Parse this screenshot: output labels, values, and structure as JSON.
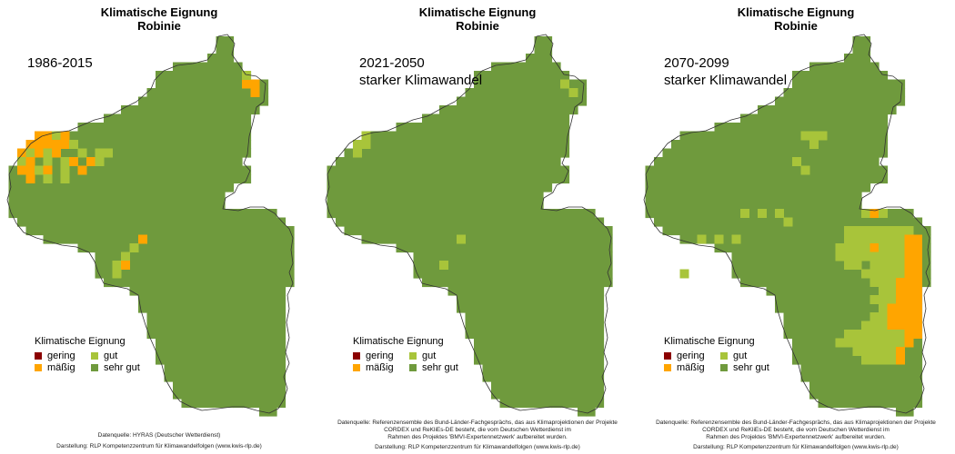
{
  "colors": {
    "gering": "#8b0000",
    "maessig": "#ffa500",
    "gut": "#a8c43a",
    "sehr_gut": "#6f9a3d",
    "border": "#333333"
  },
  "legend": {
    "title": "Klimatische Eignung",
    "items": [
      {
        "label": "gering",
        "color": "#8b0000"
      },
      {
        "label": "gut",
        "color": "#a8c43a"
      },
      {
        "label": "mäßig",
        "color": "#ffa500"
      },
      {
        "label": "sehr gut",
        "color": "#6f9a3d"
      }
    ]
  },
  "panels": [
    {
      "title_line1": "Klimatische Eignung",
      "title_line2": "Robinie",
      "period_line1": "1986-2015",
      "period_line2": "",
      "footer": [
        "Datenquelle: HYRAS (Deutscher Wetterdienst)",
        "Darstellung: RLP Kompetenzzentrum für Klimawandelfolgen (www.kwis-rlp.de)"
      ]
    },
    {
      "title_line1": "Klimatische Eignung",
      "title_line2": "Robinie",
      "period_line1": "2021-2050",
      "period_line2": "starker Klimawandel",
      "footer": [
        "Datenquelle: Referenzensemble des Bund-Länder-Fachgesprächs, das aus Klimaprojektionen der Projekte",
        "CORDEX und ReKliEs-DE besteht, die vom Deutschen Wetterdienst im",
        "Rahmen des Projektes 'BMVI-Expertennetzwerk' aufbereitet wurden.",
        "Darstellung: RLP Kompetenzzentrum für Klimawandelfolgen (www.kwis-rlp.de)"
      ]
    },
    {
      "title_line1": "Klimatische Eignung",
      "title_line2": "Robinie",
      "period_line1": "2070-2099",
      "period_line2": "starker Klimawandel",
      "footer": [
        "Datenquelle: Referenzensemble des Bund-Länder-Fachgesprächs, das aus Klimaprojektionen der Projekte",
        "CORDEX und ReKliEs-DE besteht, die vom Deutschen Wetterdienst im",
        "Rahmen des Projektes 'BMVI-Expertennetzwerk' aufbereitet wurden.",
        "Darstellung: RLP Kompetenzzentrum für Klimawandelfolgen (www.kwis-rlp.de)"
      ]
    }
  ]
}
